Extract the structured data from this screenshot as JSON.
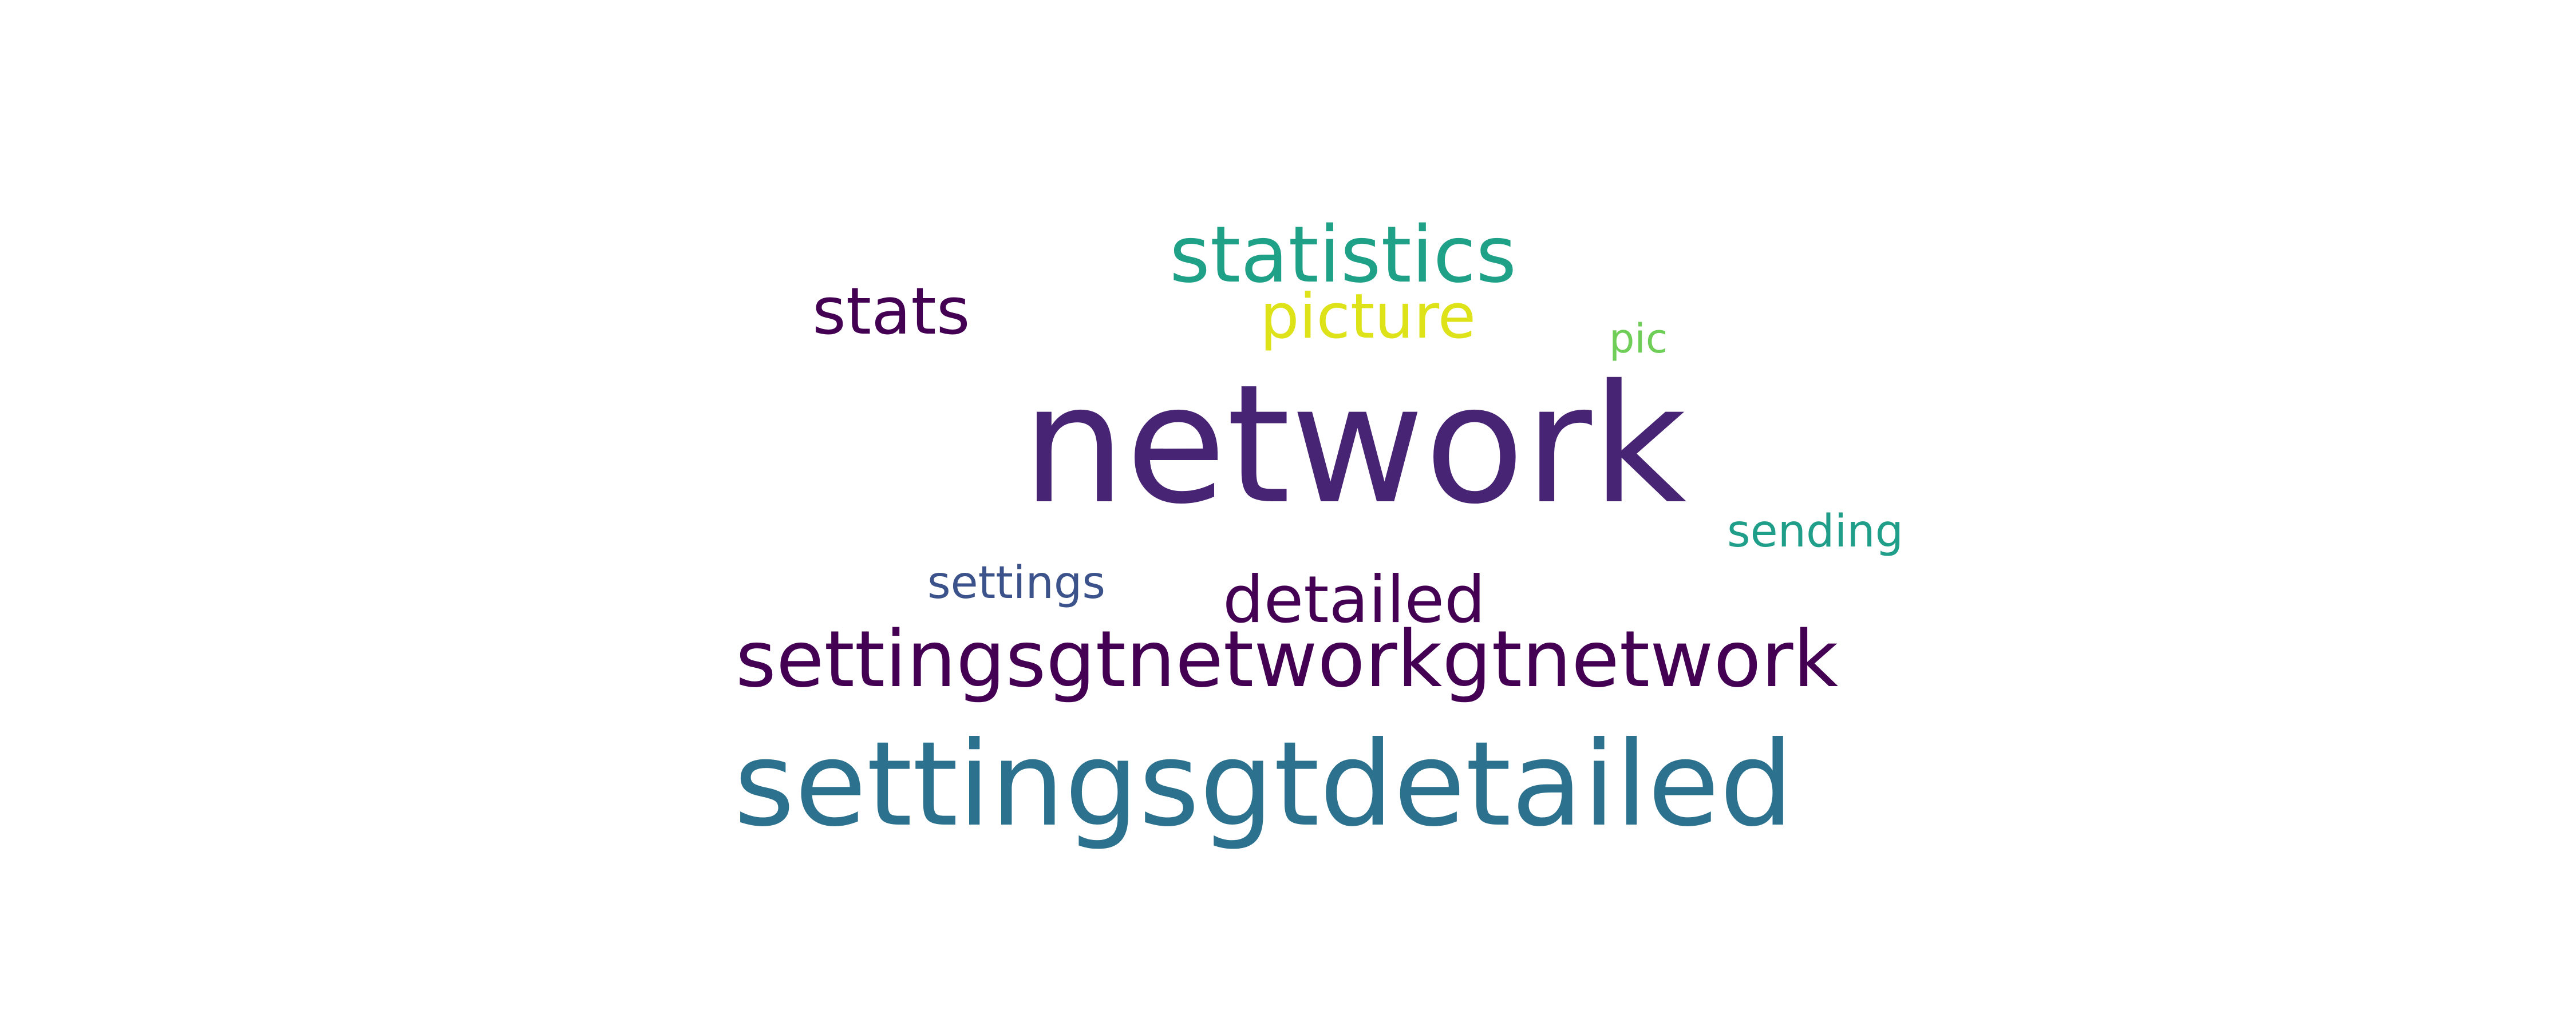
{
  "words": [
    {
      "key": "network",
      "text": "network",
      "color": "#482475"
    },
    {
      "key": "settingsgtdetailed",
      "text": "settingsgtdetailed",
      "color": "#2c728e"
    },
    {
      "key": "settingsgtnetworkgtnetwork",
      "text": "settingsgtnetworkgtnetwork",
      "color": "#440154"
    },
    {
      "key": "statistics",
      "text": "statistics",
      "color": "#1fa187"
    },
    {
      "key": "stats",
      "text": "stats",
      "color": "#440154"
    },
    {
      "key": "picture",
      "text": "picture",
      "color": "#dde318"
    },
    {
      "key": "detailed",
      "text": "detailed",
      "color": "#440154"
    },
    {
      "key": "sending",
      "text": "sending",
      "color": "#1f9e89"
    },
    {
      "key": "settings",
      "text": "settings",
      "color": "#3b528b"
    },
    {
      "key": "pic",
      "text": "pic",
      "color": "#6ece58"
    }
  ]
}
